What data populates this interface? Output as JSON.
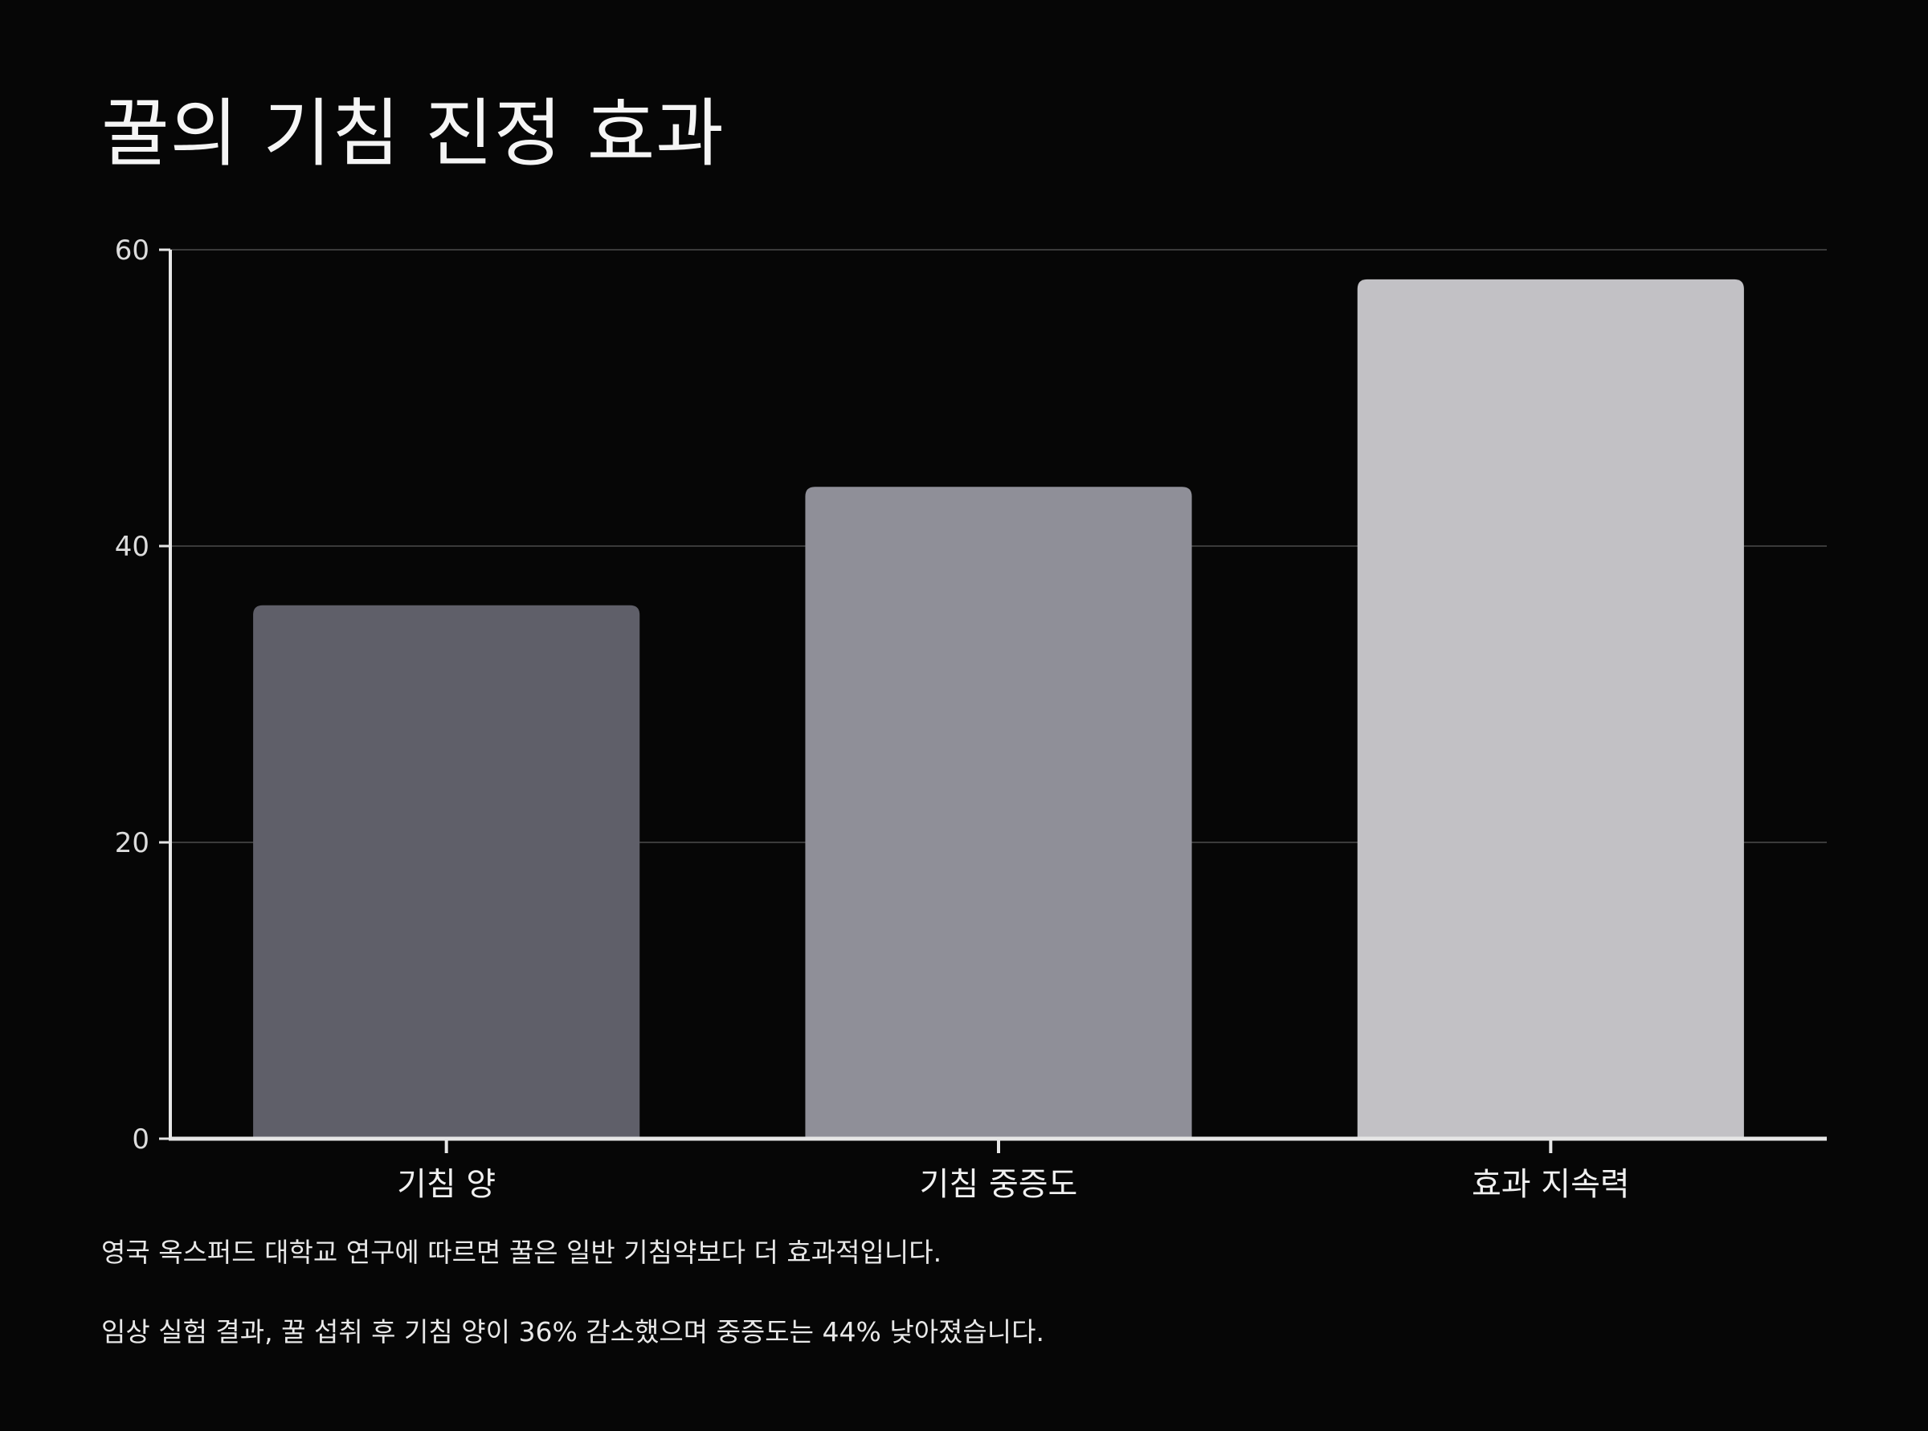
{
  "title": "꿀의 기침 진정 효과",
  "notes": [
    "영국 옥스퍼드 대학교 연구에 따르면 꿀은 일반 기침약보다 더 효과적입니다.",
    "임상 실험 결과, 꿀 섭취 후 기침 양이 36% 감소했으며 중증도는 44% 낮아졌습니다."
  ],
  "colors": {
    "background": "#060606",
    "axis": "#e6e6e6",
    "grid": "#3a3a3a",
    "bars": [
      "#5f5f69",
      "#8f8f98",
      "#c2c1c5"
    ]
  },
  "chart_data": {
    "type": "bar",
    "categories": [
      "기침 양",
      "기침 중증도",
      "효과 지속력"
    ],
    "values": [
      36,
      44,
      58
    ],
    "ylim": [
      0,
      60
    ],
    "yticks": [
      0,
      20,
      40,
      60
    ],
    "grid": true,
    "legend": "none"
  }
}
